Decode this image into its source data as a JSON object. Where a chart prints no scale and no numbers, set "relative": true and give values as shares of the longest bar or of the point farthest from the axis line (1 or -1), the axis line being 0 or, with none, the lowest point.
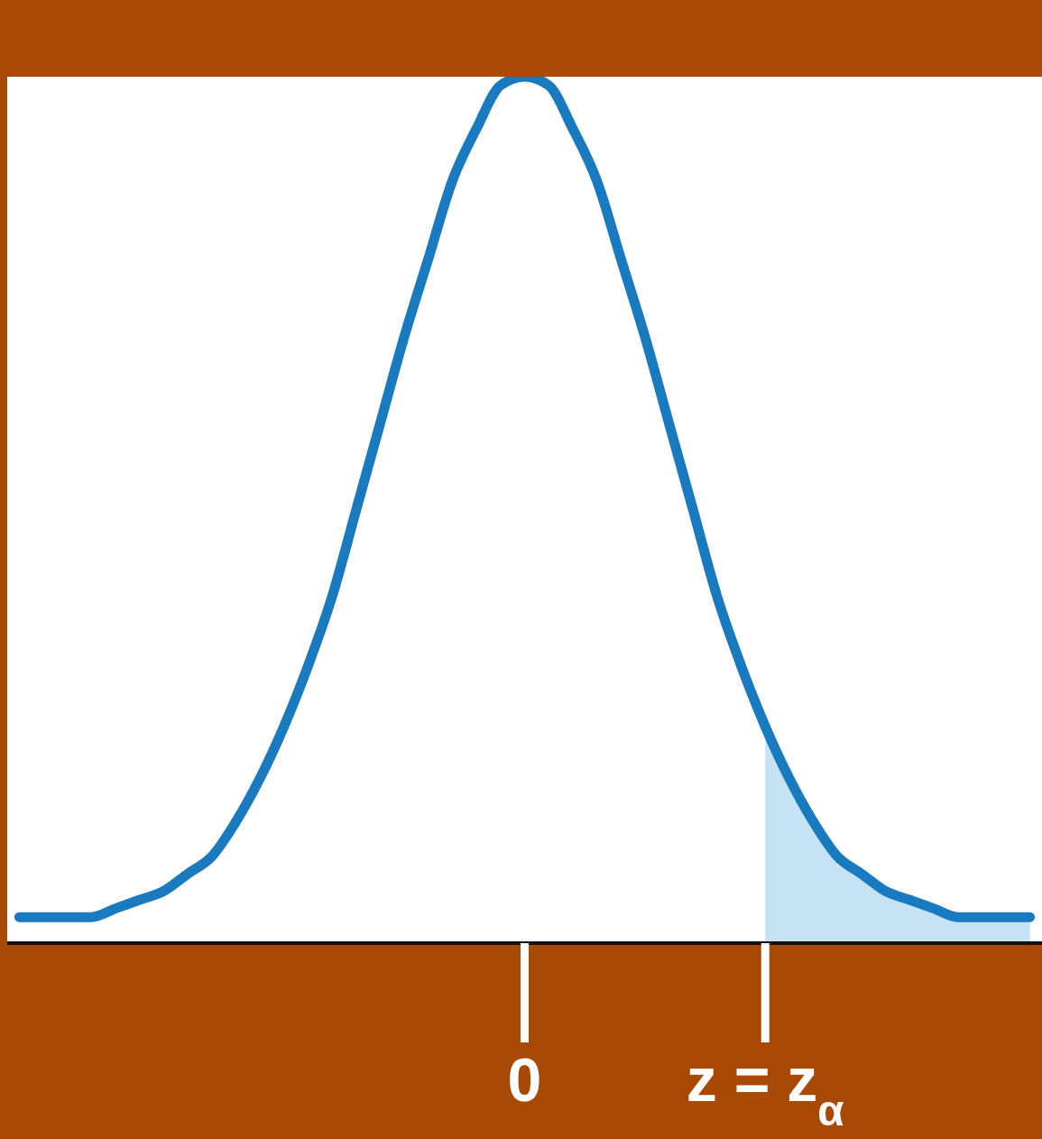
{
  "chart_data": {
    "type": "line",
    "relative": true,
    "categories": [
      null,
      null,
      null,
      null,
      null,
      null,
      null,
      null,
      null,
      null,
      null,
      null,
      null,
      null,
      null,
      null,
      null,
      null,
      null,
      null,
      null,
      "0",
      null,
      null,
      null,
      null,
      null,
      null,
      null,
      null,
      null,
      "z = z$_{α}$",
      null,
      null,
      null,
      null,
      null,
      null,
      null,
      null,
      null,
      null,
      null
    ],
    "series": [
      {
        "type": "area",
        "color": "#c5e3f5",
        "values": [
          null,
          null,
          null,
          null,
          null,
          null,
          null,
          null,
          null,
          null,
          null,
          null,
          null,
          null,
          null,
          null,
          null,
          null,
          null,
          null,
          null,
          null,
          null,
          null,
          null,
          null,
          null,
          null,
          null,
          null,
          null,
          0.25,
          0.19,
          0.14,
          0.1,
          0.08,
          0.06,
          0.05,
          0.04,
          0.03,
          0.03,
          0.03,
          0.03
        ]
      },
      {
        "color": "#1a7abf",
        "values": [
          0.03,
          0.03,
          0.03,
          0.03,
          0.04,
          0.05,
          0.06,
          0.08,
          0.1,
          0.14,
          0.19,
          0.25,
          0.32,
          0.4,
          0.5,
          0.6,
          0.7,
          0.79,
          0.88,
          0.94,
          0.99,
          1.0,
          0.99,
          0.94,
          0.88,
          0.79,
          0.7,
          0.6,
          0.5,
          0.4,
          0.32,
          0.25,
          0.19,
          0.14,
          0.1,
          0.08,
          0.06,
          0.05,
          0.04,
          0.03,
          0.03,
          0.03,
          0.03
        ]
      }
    ]
  }
}
